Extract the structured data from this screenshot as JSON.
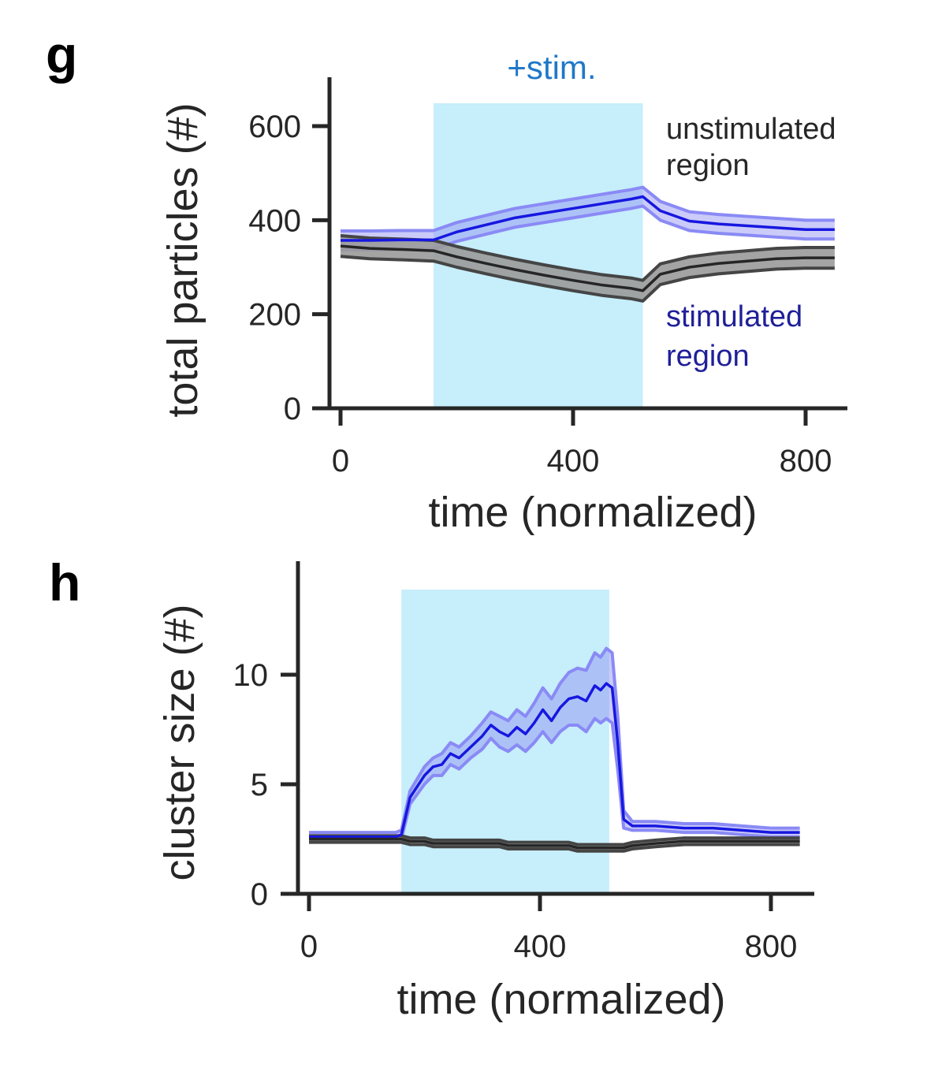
{
  "colors": {
    "stim_shade": "#c6eefb",
    "blue_line": "#1717e0",
    "blue_band": "#8c8cf2",
    "blue_band_edge": "#8a8af5",
    "black_line": "#262626",
    "black_band": "#9a9a9a",
    "black_band_edge": "#454545",
    "stim_label": "#1f78c8",
    "unstim_label": "#262626",
    "stim_region_label": "#1f1f99"
  },
  "panels": {
    "g": {
      "letter": "g",
      "stim_label": "+stim.",
      "unstim_label_line1": "unstimulated",
      "unstim_label_line2": "region",
      "stim_region_label_line1": "stimulated",
      "stim_region_label_line2": "region"
    },
    "h": {
      "letter": "h"
    }
  },
  "chart_data": [
    {
      "type": "line",
      "panel": "g",
      "title": "",
      "xlabel": "time (normalized)",
      "ylabel": "total particles (#)",
      "xlim": [
        -25,
        870
      ],
      "ylim": [
        0,
        700
      ],
      "xticks": [
        0,
        400,
        800
      ],
      "yticks": [
        0,
        200,
        400,
        600
      ],
      "grid": false,
      "stim_window": [
        160,
        520
      ],
      "x": [
        0,
        50,
        100,
        160,
        200,
        250,
        300,
        350,
        400,
        450,
        500,
        520,
        550,
        600,
        650,
        700,
        750,
        800,
        850
      ],
      "series": [
        {
          "name": "unstimulated region",
          "color": "blue",
          "values": [
            357,
            357,
            358,
            358,
            375,
            390,
            405,
            415,
            425,
            435,
            445,
            450,
            420,
            398,
            392,
            388,
            384,
            380,
            380
          ],
          "band": 20
        },
        {
          "name": "stimulated region",
          "color": "black",
          "values": [
            345,
            340,
            338,
            335,
            322,
            308,
            295,
            283,
            272,
            262,
            255,
            250,
            285,
            300,
            308,
            313,
            318,
            320,
            320
          ],
          "band": 22
        }
      ]
    },
    {
      "type": "line",
      "panel": "h",
      "title": "",
      "xlabel": "time (normalized)",
      "ylabel": "cluster size (#)",
      "xlim": [
        -15,
        870
      ],
      "ylim": [
        0,
        14.3
      ],
      "xticks": [
        0,
        400,
        800
      ],
      "yticks": [
        0,
        5,
        10
      ],
      "grid": false,
      "stim_window": [
        160,
        520
      ],
      "x": [
        0,
        50,
        100,
        150,
        160,
        175,
        200,
        215,
        230,
        245,
        260,
        280,
        300,
        315,
        330,
        345,
        360,
        375,
        390,
        405,
        420,
        435,
        450,
        465,
        480,
        495,
        505,
        515,
        525,
        535,
        545,
        560,
        600,
        650,
        700,
        750,
        800,
        850
      ],
      "series": [
        {
          "name": "blue",
          "color": "blue",
          "values": [
            2.6,
            2.6,
            2.6,
            2.6,
            2.7,
            4.4,
            5.4,
            5.8,
            5.9,
            6.4,
            6.2,
            6.7,
            7.2,
            7.7,
            7.4,
            7.2,
            7.6,
            7.3,
            7.8,
            8.4,
            7.9,
            8.5,
            8.9,
            9.0,
            8.8,
            9.5,
            9.3,
            9.6,
            9.4,
            6.8,
            3.4,
            3.1,
            3.1,
            3.0,
            3.0,
            2.9,
            2.8,
            2.8
          ],
          "band_lower": [
            0.2,
            0.2,
            0.2,
            0.2,
            0.2,
            0.3,
            0.4,
            0.4,
            0.5,
            0.5,
            0.5,
            0.5,
            0.6,
            0.6,
            0.7,
            0.7,
            0.8,
            0.8,
            0.9,
            1.0,
            1.0,
            1.1,
            1.2,
            1.3,
            1.4,
            1.5,
            1.5,
            1.6,
            1.6,
            1.2,
            0.4,
            0.2,
            0.2,
            0.2,
            0.2,
            0.2,
            0.2,
            0.2
          ],
          "band_upper": [
            0.2,
            0.2,
            0.2,
            0.2,
            0.2,
            0.3,
            0.4,
            0.4,
            0.5,
            0.5,
            0.5,
            0.5,
            0.6,
            0.6,
            0.7,
            0.7,
            0.8,
            0.8,
            0.9,
            1.0,
            1.0,
            1.1,
            1.2,
            1.3,
            1.4,
            1.5,
            1.5,
            1.6,
            1.6,
            1.2,
            0.4,
            0.2,
            0.2,
            0.2,
            0.2,
            0.2,
            0.2,
            0.2
          ]
        },
        {
          "name": "black",
          "color": "black",
          "values": [
            2.5,
            2.5,
            2.5,
            2.5,
            2.5,
            2.4,
            2.4,
            2.3,
            2.3,
            2.3,
            2.3,
            2.3,
            2.3,
            2.3,
            2.3,
            2.2,
            2.2,
            2.2,
            2.2,
            2.2,
            2.2,
            2.2,
            2.2,
            2.1,
            2.1,
            2.1,
            2.1,
            2.1,
            2.1,
            2.1,
            2.1,
            2.2,
            2.3,
            2.4,
            2.4,
            2.4,
            2.4,
            2.4
          ],
          "band_lower": [
            0.15,
            0.15,
            0.15,
            0.15,
            0.15,
            0.15,
            0.15,
            0.15,
            0.15,
            0.15,
            0.15,
            0.15,
            0.15,
            0.15,
            0.15,
            0.15,
            0.15,
            0.15,
            0.15,
            0.15,
            0.15,
            0.15,
            0.15,
            0.15,
            0.15,
            0.15,
            0.15,
            0.15,
            0.15,
            0.15,
            0.15,
            0.15,
            0.15,
            0.15,
            0.15,
            0.15,
            0.15,
            0.15
          ],
          "band_upper": [
            0.15,
            0.15,
            0.15,
            0.15,
            0.15,
            0.15,
            0.15,
            0.15,
            0.15,
            0.15,
            0.15,
            0.15,
            0.15,
            0.15,
            0.15,
            0.15,
            0.15,
            0.15,
            0.15,
            0.15,
            0.15,
            0.15,
            0.15,
            0.15,
            0.15,
            0.15,
            0.15,
            0.15,
            0.15,
            0.15,
            0.15,
            0.15,
            0.15,
            0.15,
            0.15,
            0.15,
            0.15,
            0.15
          ]
        }
      ]
    }
  ]
}
